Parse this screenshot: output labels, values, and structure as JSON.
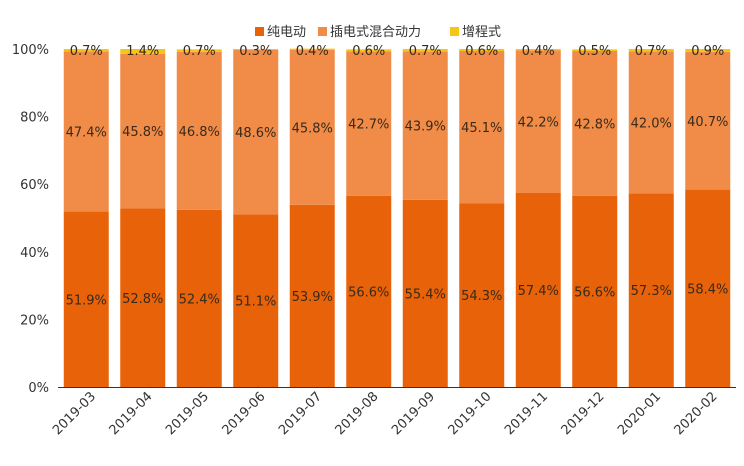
{
  "chart_data": {
    "type": "bar",
    "stacked": true,
    "percent": true,
    "title": "",
    "xlabel": "",
    "ylabel": "",
    "ylim": [
      0,
      100
    ],
    "yticks": [
      "0%",
      "20%",
      "40%",
      "60%",
      "80%",
      "100%"
    ],
    "ytick_values": [
      0,
      20,
      40,
      60,
      80,
      100
    ],
    "legend_position": "top-center",
    "categories": [
      "2019-03",
      "2019-04",
      "2019-05",
      "2019-06",
      "2019-07",
      "2019-08",
      "2019-09",
      "2019-10",
      "2019-11",
      "2019-12",
      "2020-01",
      "2020-02"
    ],
    "series": [
      {
        "name": "纯电动",
        "color": "#E8620A",
        "values": [
          51.9,
          52.8,
          52.4,
          51.1,
          53.9,
          56.6,
          55.4,
          54.3,
          57.4,
          56.6,
          57.3,
          58.4
        ],
        "labels": [
          "51.9%",
          "52.8%",
          "52.4%",
          "51.1%",
          "53.9%",
          "56.6%",
          "55.4%",
          "54.3%",
          "57.4%",
          "56.6%",
          "57.3%",
          "58.4%"
        ]
      },
      {
        "name": "插电式混合动力",
        "color": "#F08C48",
        "values": [
          47.4,
          45.8,
          46.8,
          48.6,
          45.8,
          42.7,
          43.9,
          45.1,
          42.2,
          42.8,
          42.0,
          40.7
        ],
        "labels": [
          "47.4%",
          "45.8%",
          "46.8%",
          "48.6%",
          "45.8%",
          "42.7%",
          "43.9%",
          "45.1%",
          "42.2%",
          "42.8%",
          "42.0%",
          "40.7%"
        ]
      },
      {
        "name": "增程式",
        "color": "#F5C518",
        "values": [
          0.7,
          1.4,
          0.7,
          0.3,
          0.4,
          0.6,
          0.7,
          0.6,
          0.4,
          0.5,
          0.7,
          0.9
        ],
        "labels": [
          "0.7%",
          "1.4%",
          "0.7%",
          "0.3%",
          "0.4%",
          "0.6%",
          "0.7%",
          "0.6%",
          "0.4%",
          "0.5%",
          "0.7%",
          "0.9%"
        ]
      }
    ]
  }
}
